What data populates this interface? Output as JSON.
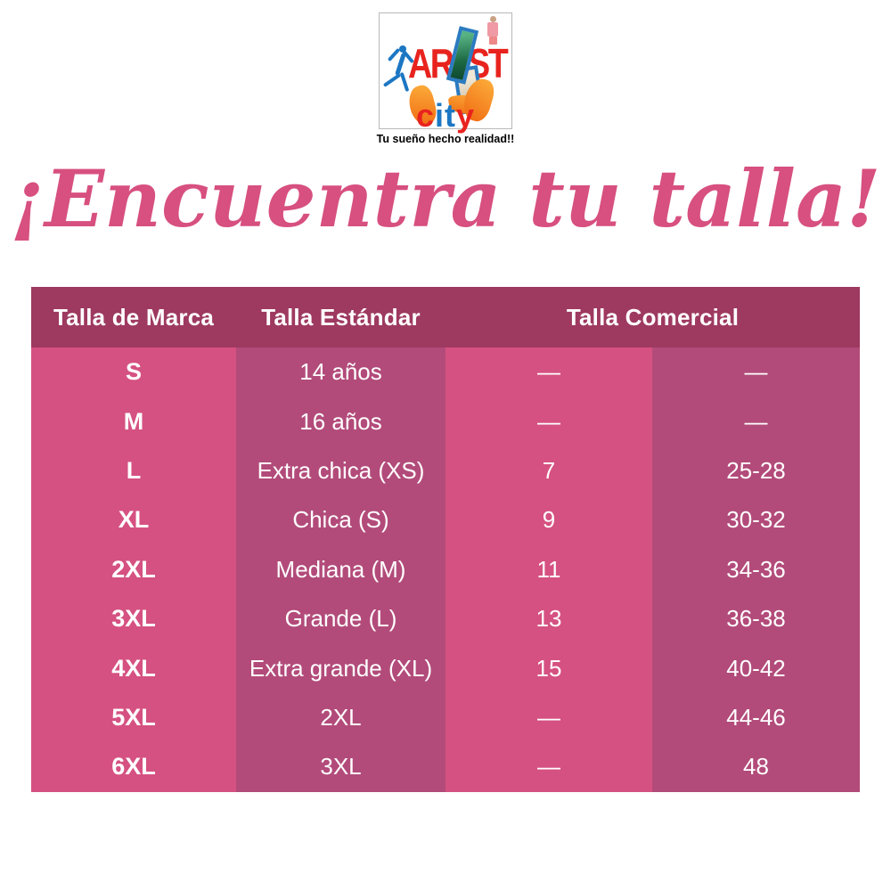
{
  "logo": {
    "brand_left": "AR",
    "brand_right": "ST",
    "city": {
      "c": "c",
      "i": "i",
      "t": "t",
      "y": "y"
    },
    "tagline": "Tu sueño hecho realidad!!"
  },
  "title": "¡Encuentra tu talla!",
  "table": {
    "headers": [
      "Talla de Marca",
      "Talla Estándar",
      "Talla Comercial"
    ],
    "rows": [
      {
        "marca": "S",
        "estandar": "14 años",
        "comercial_num": "—",
        "comercial_rango": "—"
      },
      {
        "marca": "M",
        "estandar": "16 años",
        "comercial_num": "—",
        "comercial_rango": "—"
      },
      {
        "marca": "L",
        "estandar": "Extra chica (XS)",
        "comercial_num": "7",
        "comercial_rango": "25-28"
      },
      {
        "marca": "XL",
        "estandar": "Chica (S)",
        "comercial_num": "9",
        "comercial_rango": "30-32"
      },
      {
        "marca": "2XL",
        "estandar": "Mediana (M)",
        "comercial_num": "11",
        "comercial_rango": "34-36"
      },
      {
        "marca": "3XL",
        "estandar": "Grande (L)",
        "comercial_num": "13",
        "comercial_rango": "36-38"
      },
      {
        "marca": "4XL",
        "estandar": "Extra grande (XL)",
        "comercial_num": "15",
        "comercial_rango": "40-42"
      },
      {
        "marca": "5XL",
        "estandar": "2XL",
        "comercial_num": "—",
        "comercial_rango": "44-46"
      },
      {
        "marca": "6XL",
        "estandar": "3XL",
        "comercial_num": "—",
        "comercial_rango": "48"
      }
    ]
  },
  "colors": {
    "header_bg": "#9E3960",
    "col_bright": "#D55181",
    "col_dark": "#B24B7A",
    "title_pink": "#D7507F",
    "logo_red": "#E8231E",
    "logo_blue": "#1C77C3",
    "logo_orange": "#F5821F"
  }
}
